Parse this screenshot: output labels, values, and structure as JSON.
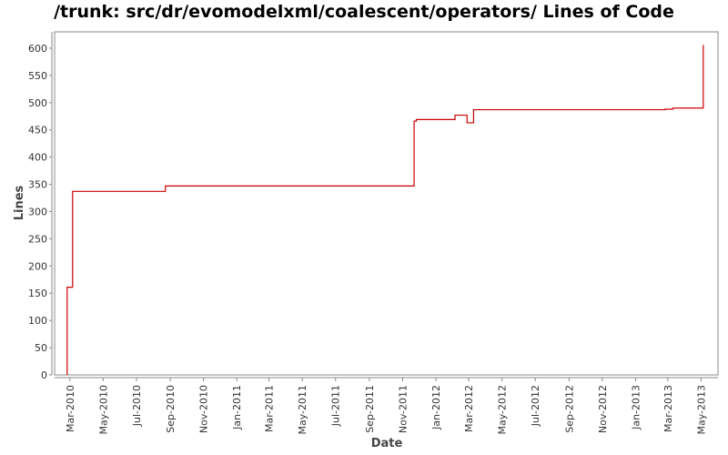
{
  "chart_data": {
    "type": "line",
    "title": "/trunk: src/dr/evomodelxml/coalescent/operators/ Lines of Code",
    "xlabel": "Date",
    "ylabel": "Lines",
    "xlim": [
      "2010-02-01",
      "2013-06-01"
    ],
    "ylim": [
      0,
      630
    ],
    "x_ticks": [
      "Mar-2010",
      "May-2010",
      "Jul-2010",
      "Sep-2010",
      "Nov-2010",
      "Jan-2011",
      "Mar-2011",
      "May-2011",
      "Jul-2011",
      "Sep-2011",
      "Nov-2011",
      "Jan-2012",
      "Mar-2012",
      "May-2012",
      "Jul-2012",
      "Sep-2012",
      "Nov-2012",
      "Jan-2013",
      "Mar-2013",
      "May-2013"
    ],
    "y_ticks": [
      0,
      50,
      100,
      150,
      200,
      250,
      300,
      350,
      400,
      450,
      500,
      550,
      600
    ],
    "grid": false,
    "line_color": "#cc0000",
    "series": [
      {
        "step": true,
        "points": [
          [
            "2010-02-24",
            0
          ],
          [
            "2010-02-24",
            161
          ],
          [
            "2010-03-06",
            161
          ],
          [
            "2010-03-06",
            337
          ],
          [
            "2010-08-23",
            337
          ],
          [
            "2010-08-23",
            347
          ],
          [
            "2011-11-22",
            347
          ],
          [
            "2011-11-22",
            466
          ],
          [
            "2011-11-26",
            466
          ],
          [
            "2011-11-26",
            469
          ],
          [
            "2012-02-05",
            469
          ],
          [
            "2012-02-05",
            477
          ],
          [
            "2012-02-27",
            477
          ],
          [
            "2012-02-27",
            463
          ],
          [
            "2012-03-10",
            463
          ],
          [
            "2012-03-10",
            487
          ],
          [
            "2013-02-24",
            487
          ],
          [
            "2013-02-24",
            488
          ],
          [
            "2013-03-10",
            488
          ],
          [
            "2013-03-10",
            490
          ],
          [
            "2013-05-05",
            490
          ],
          [
            "2013-05-05",
            606
          ]
        ]
      }
    ]
  }
}
